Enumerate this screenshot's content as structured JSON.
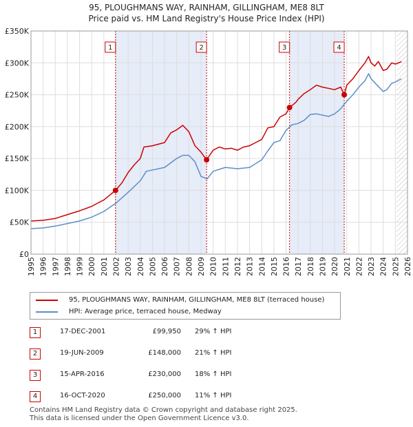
{
  "title_line1": "95, PLOUGHMANS WAY, RAINHAM, GILLINGHAM, ME8 8LT",
  "title_line2": "Price paid vs. HM Land Registry's House Price Index (HPI)",
  "legend": {
    "property": "95, PLOUGHMANS WAY, RAINHAM, GILLINGHAM, ME8 8LT (terraced house)",
    "hpi": "HPI: Average price, terraced house, Medway"
  },
  "colors": {
    "property": "#cc0000",
    "hpi": "#5b8ec9",
    "shade": "#e6ecf8",
    "grid": "#dddddd"
  },
  "sales": [
    {
      "num": "1",
      "date": "17-DEC-2001",
      "price": "£99,950",
      "hpi": "29% ↑ HPI"
    },
    {
      "num": "2",
      "date": "19-JUN-2009",
      "price": "£148,000",
      "hpi": "21% ↑ HPI"
    },
    {
      "num": "3",
      "date": "15-APR-2016",
      "price": "£230,000",
      "hpi": "18% ↑ HPI"
    },
    {
      "num": "4",
      "date": "16-OCT-2020",
      "price": "£250,000",
      "hpi": "11% ↑ HPI"
    }
  ],
  "footer_line1": "Contains HM Land Registry data © Crown copyright and database right 2025.",
  "footer_line2": "This data is licensed under the Open Government Licence v3.0.",
  "chart_data": {
    "type": "line",
    "xlim": [
      1995,
      2026
    ],
    "ylim": [
      0,
      350000
    ],
    "y_ticks": [
      0,
      50000,
      100000,
      150000,
      200000,
      250000,
      300000,
      350000
    ],
    "y_tick_labels": [
      "£0",
      "£50K",
      "£100K",
      "£150K",
      "£200K",
      "£250K",
      "£300K",
      "£350K"
    ],
    "x_ticks": [
      1995,
      1996,
      1997,
      1998,
      1999,
      2000,
      2001,
      2002,
      2003,
      2004,
      2005,
      2006,
      2007,
      2008,
      2009,
      2010,
      2011,
      2012,
      2013,
      2014,
      2015,
      2016,
      2017,
      2018,
      2019,
      2020,
      2021,
      2022,
      2023,
      2024,
      2025,
      2026
    ],
    "shaded_periods": [
      [
        2001.96,
        2009.46
      ],
      [
        2016.29,
        2020.79
      ]
    ],
    "future_hatch_from": 2025.1,
    "sale_markers": [
      {
        "label": "1",
        "x": 2001.96,
        "y": 99950
      },
      {
        "label": "2",
        "x": 2009.46,
        "y": 148000
      },
      {
        "label": "3",
        "x": 2016.29,
        "y": 230000
      },
      {
        "label": "4",
        "x": 2020.79,
        "y": 250000
      }
    ],
    "series": [
      {
        "name": "95, PLOUGHMANS WAY, RAINHAM, GILLINGHAM, ME8 8LT (terraced house)",
        "x": [
          1995,
          1996,
          1997,
          1998,
          1999,
          2000,
          2000.5,
          2001,
          2001.96,
          2002.5,
          2003,
          2003.5,
          2004,
          2004.3,
          2005,
          2006,
          2006.5,
          2007,
          2007.5,
          2008,
          2008.5,
          2009,
          2009.46,
          2010,
          2010.5,
          2011,
          2011.5,
          2012,
          2012.5,
          2013,
          2013.5,
          2014,
          2014.5,
          2015,
          2015.5,
          2016,
          2016.29,
          2016.8,
          2017,
          2017.5,
          2018,
          2018.5,
          2019,
          2019.5,
          2020,
          2020.5,
          2020.79,
          2021,
          2021.5,
          2022,
          2022.5,
          2022.8,
          2023,
          2023.3,
          2023.6,
          2024,
          2024.3,
          2024.7,
          2025,
          2025.5
        ],
        "y": [
          52000,
          53000,
          56000,
          62000,
          68000,
          75000,
          80000,
          85000,
          99950,
          112000,
          128000,
          140000,
          150000,
          168000,
          170000,
          175000,
          190000,
          195000,
          202000,
          192000,
          170000,
          160000,
          148000,
          163000,
          168000,
          165000,
          166000,
          163000,
          168000,
          170000,
          175000,
          180000,
          198000,
          200000,
          215000,
          220000,
          230000,
          238000,
          243000,
          252000,
          258000,
          265000,
          262000,
          260000,
          258000,
          262000,
          250000,
          265000,
          275000,
          288000,
          300000,
          310000,
          300000,
          295000,
          302000,
          288000,
          290000,
          300000,
          298000,
          302000
        ]
      },
      {
        "name": "HPI: Average price, terraced house, Medway",
        "x": [
          1995,
          1996,
          1997,
          1998,
          1999,
          2000,
          2001,
          2002,
          2003,
          2004,
          2004.5,
          2005,
          2006,
          2006.5,
          2007,
          2007.5,
          2008,
          2008.5,
          2009,
          2009.5,
          2010,
          2011,
          2012,
          2013,
          2014,
          2014.5,
          2015,
          2015.5,
          2016,
          2016.5,
          2017,
          2017.5,
          2018,
          2018.5,
          2019,
          2019.5,
          2020,
          2020.5,
          2021,
          2021.5,
          2022,
          2022.5,
          2022.8,
          2023,
          2023.5,
          2024,
          2024.3,
          2024.7,
          2025,
          2025.5
        ],
        "y": [
          40000,
          41000,
          44000,
          48000,
          52000,
          58000,
          67000,
          80000,
          97000,
          115000,
          130000,
          132000,
          136000,
          143000,
          150000,
          155000,
          155000,
          145000,
          122000,
          118000,
          130000,
          136000,
          134000,
          136000,
          148000,
          162000,
          175000,
          178000,
          194000,
          203000,
          205000,
          210000,
          219000,
          220000,
          218000,
          216000,
          220000,
          228000,
          240000,
          250000,
          262000,
          272000,
          283000,
          275000,
          265000,
          255000,
          258000,
          268000,
          270000,
          275000
        ]
      }
    ]
  }
}
